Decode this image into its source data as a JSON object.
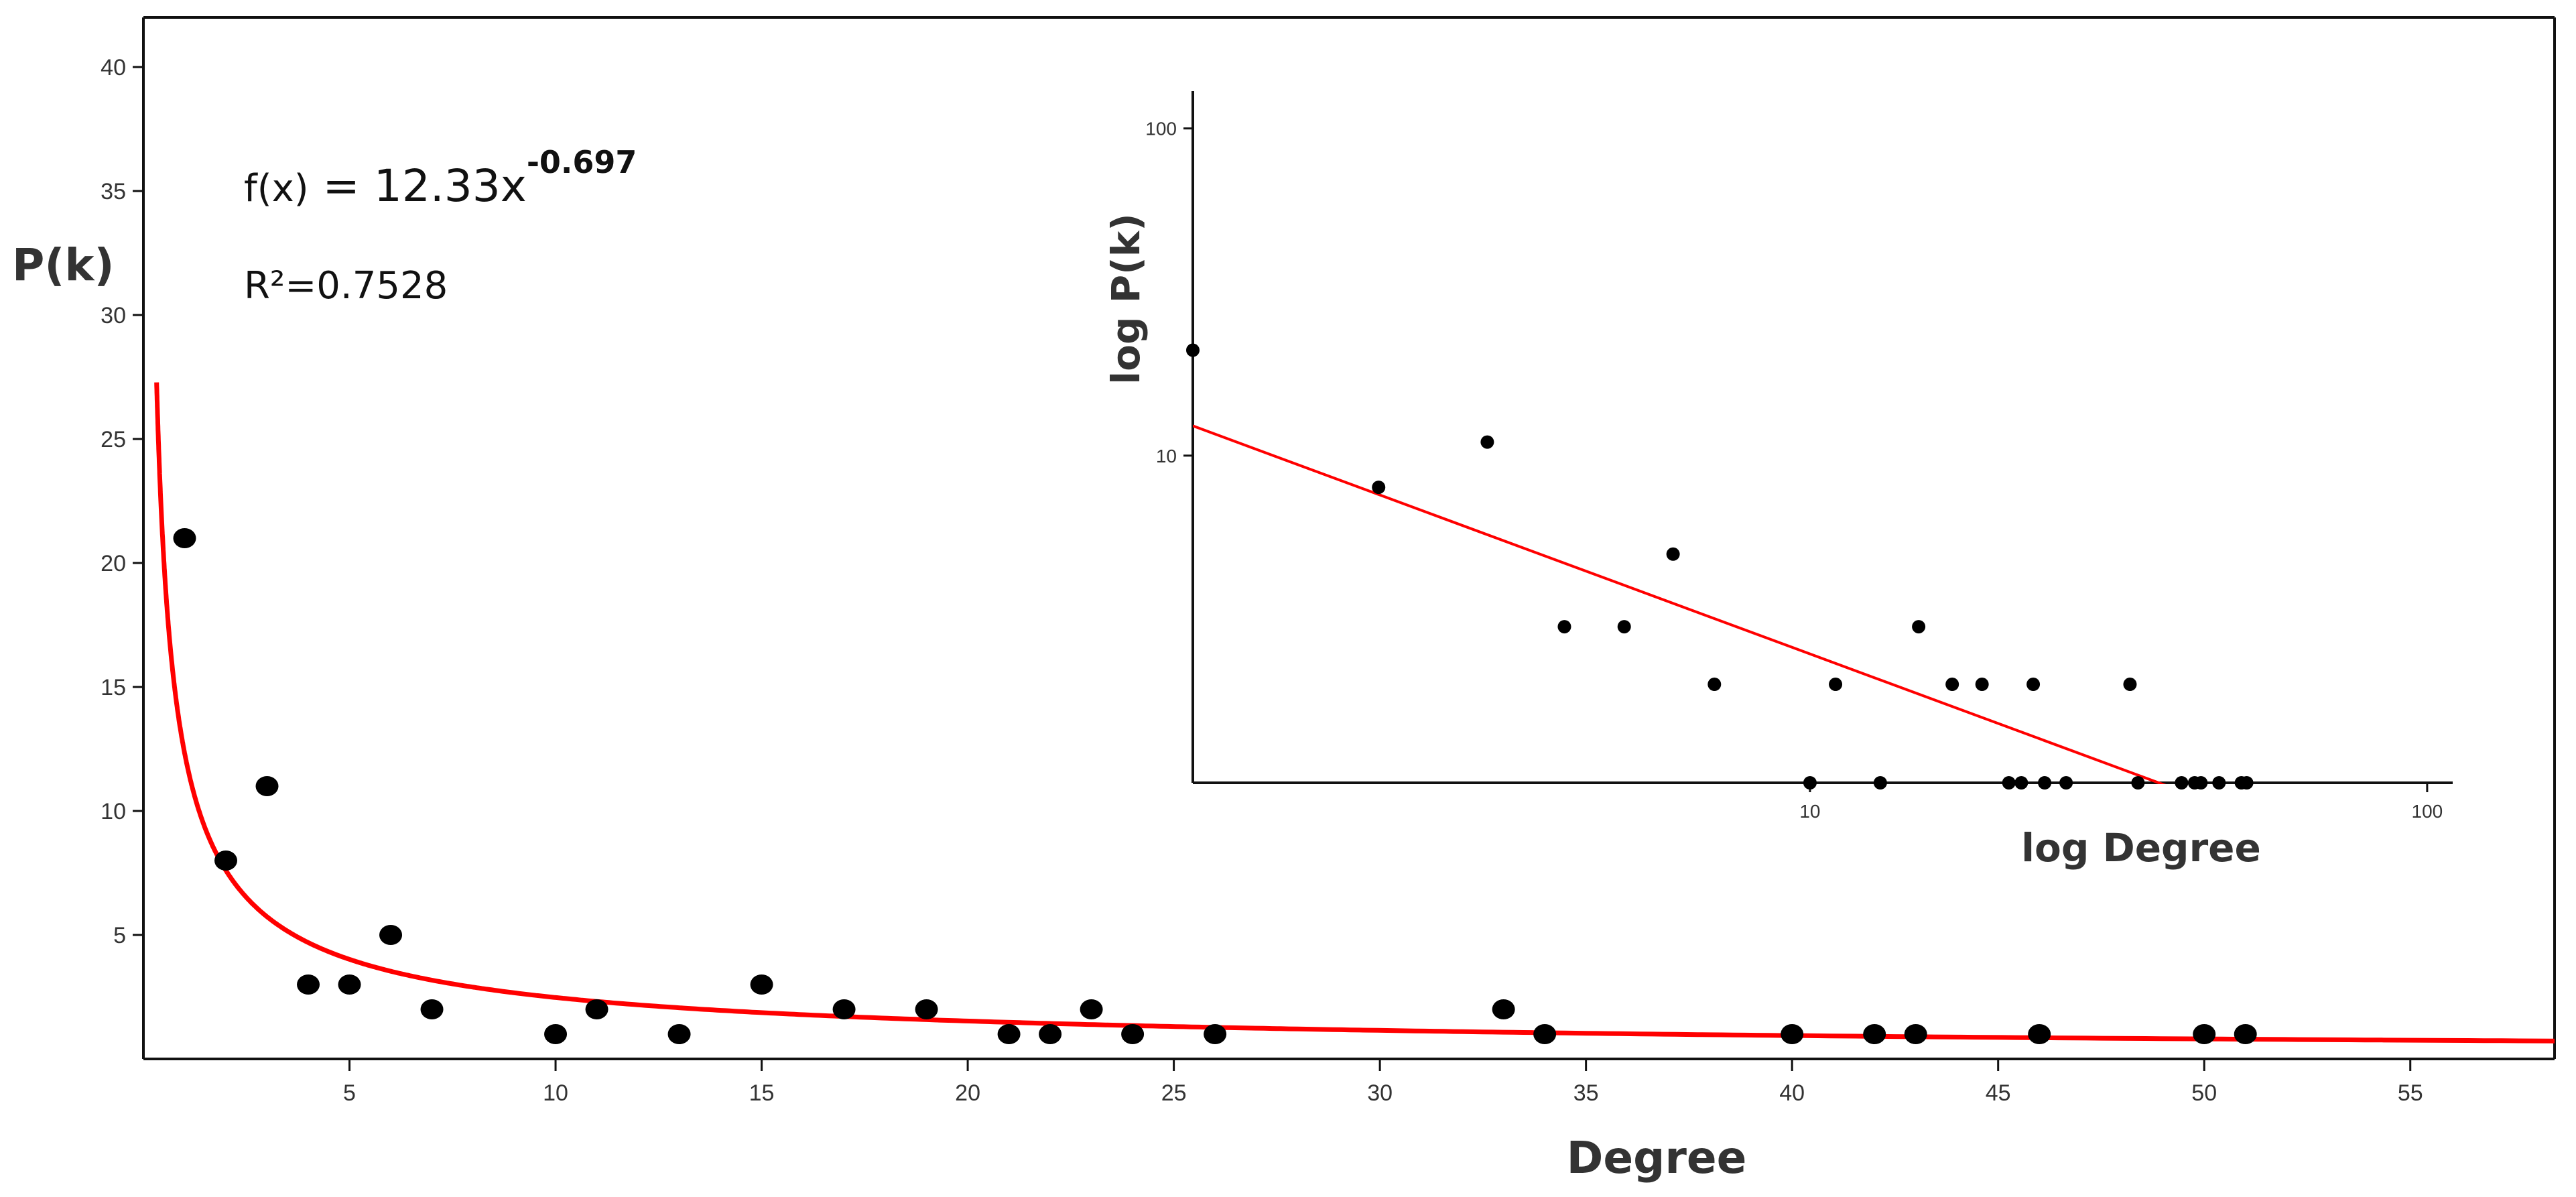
{
  "chart_data": [
    {
      "type": "scatter",
      "xlabel": "Degree",
      "ylabel": "P(k)",
      "xlim": [
        0,
        58.5
      ],
      "ylim": [
        0,
        42
      ],
      "xticks": [
        5,
        10,
        15,
        20,
        25,
        30,
        35,
        40,
        45,
        50,
        55
      ],
      "yticks": [
        5,
        10,
        15,
        20,
        25,
        30,
        35,
        40
      ],
      "grid": false,
      "annotations": {
        "formula_prefix": "f(x)",
        "formula_eq": " = 12.33x",
        "formula_exponent": "-0.697",
        "r2_label": "R²=0.7528"
      },
      "fit": {
        "type": "power",
        "coefficient": 12.33,
        "exponent": -0.697,
        "color": "#ff0000"
      },
      "point_color": "#000000",
      "points": [
        {
          "x": 1,
          "y": 21
        },
        {
          "x": 2,
          "y": 8
        },
        {
          "x": 3,
          "y": 11
        },
        {
          "x": 4,
          "y": 3
        },
        {
          "x": 5,
          "y": 3
        },
        {
          "x": 6,
          "y": 5
        },
        {
          "x": 7,
          "y": 2
        },
        {
          "x": 10,
          "y": 1
        },
        {
          "x": 11,
          "y": 2
        },
        {
          "x": 13,
          "y": 1
        },
        {
          "x": 15,
          "y": 3
        },
        {
          "x": 17,
          "y": 2
        },
        {
          "x": 19,
          "y": 2
        },
        {
          "x": 21,
          "y": 1
        },
        {
          "x": 22,
          "y": 1
        },
        {
          "x": 23,
          "y": 2
        },
        {
          "x": 24,
          "y": 1
        },
        {
          "x": 26,
          "y": 1
        },
        {
          "x": 33,
          "y": 2
        },
        {
          "x": 34,
          "y": 1
        },
        {
          "x": 40,
          "y": 1
        },
        {
          "x": 42,
          "y": 1
        },
        {
          "x": 43,
          "y": 1
        },
        {
          "x": 46,
          "y": 1
        },
        {
          "x": 50,
          "y": 1
        },
        {
          "x": 51,
          "y": 1
        }
      ]
    },
    {
      "type": "scatter",
      "scale": "log-log",
      "xlabel": "log Degree",
      "ylabel": "log P(k)",
      "xlim": [
        1,
        110
      ],
      "ylim": [
        1,
        130
      ],
      "xticks": [
        10,
        100
      ],
      "yticks": [
        10,
        100
      ],
      "grid": false,
      "fit": {
        "type": "power",
        "coefficient": 12.33,
        "exponent": -0.697,
        "color": "#ff0000"
      },
      "point_color": "#000000",
      "points": [
        {
          "x": 1,
          "y": 21
        },
        {
          "x": 2,
          "y": 8
        },
        {
          "x": 3,
          "y": 11
        },
        {
          "x": 4,
          "y": 3
        },
        {
          "x": 5,
          "y": 3
        },
        {
          "x": 6,
          "y": 5
        },
        {
          "x": 7,
          "y": 2
        },
        {
          "x": 10,
          "y": 1
        },
        {
          "x": 11,
          "y": 2
        },
        {
          "x": 13,
          "y": 1
        },
        {
          "x": 15,
          "y": 3
        },
        {
          "x": 17,
          "y": 2
        },
        {
          "x": 19,
          "y": 2
        },
        {
          "x": 21,
          "y": 1
        },
        {
          "x": 22,
          "y": 1
        },
        {
          "x": 23,
          "y": 2
        },
        {
          "x": 24,
          "y": 1
        },
        {
          "x": 26,
          "y": 1
        },
        {
          "x": 33,
          "y": 2
        },
        {
          "x": 34,
          "y": 1
        },
        {
          "x": 40,
          "y": 1
        },
        {
          "x": 42,
          "y": 1
        },
        {
          "x": 43,
          "y": 1
        },
        {
          "x": 46,
          "y": 1
        },
        {
          "x": 50,
          "y": 1
        },
        {
          "x": 51,
          "y": 1
        }
      ]
    }
  ]
}
